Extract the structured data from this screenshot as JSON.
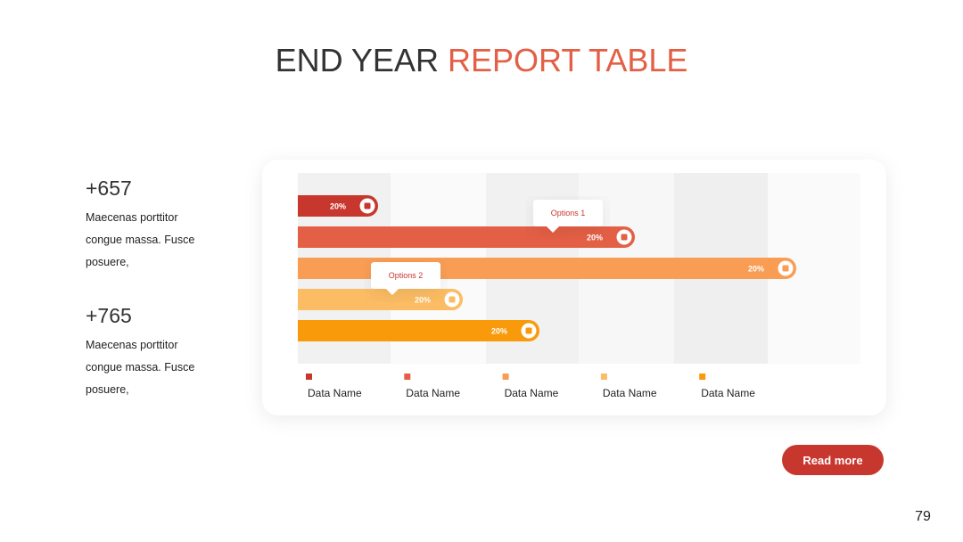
{
  "title": {
    "part1": "END YEAR",
    "part2": "REPORT TABLE"
  },
  "stats": [
    {
      "value": "+657",
      "text": "Maecenas porttitor congue massa. Fusce posuere,"
    },
    {
      "value": "+765",
      "text": "Maecenas porttitor congue massa. Fusce posuere,"
    }
  ],
  "chart": {
    "bars": [
      {
        "label": "20%",
        "color": "#c8372d"
      },
      {
        "label": "20%",
        "color": "#e35f45"
      },
      {
        "label": "20%",
        "color": "#f99d55"
      },
      {
        "label": "20%",
        "color": "#fcbc63"
      },
      {
        "label": "20%",
        "color": "#f99a0b"
      }
    ],
    "callouts": [
      "Options 1",
      "Options 2"
    ],
    "legend": [
      "Data Name",
      "Data Name",
      "Data Name",
      "Data Name",
      "Data Name"
    ]
  },
  "button": "Read more",
  "page_number": "79"
}
